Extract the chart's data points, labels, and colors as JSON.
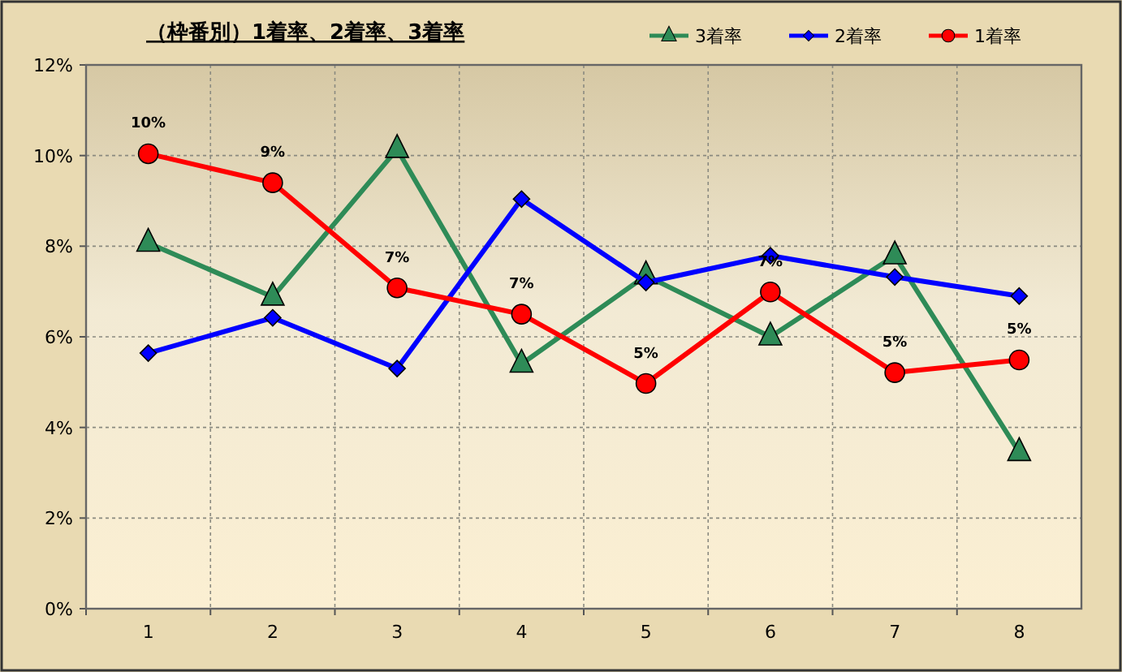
{
  "chart_data": {
    "type": "line",
    "title": "（枠番別）1着率、2着率、3着率",
    "categories": [
      "1",
      "2",
      "3",
      "4",
      "5",
      "6",
      "7",
      "8"
    ],
    "series": [
      {
        "name": "3着率",
        "color": "#2e8b57",
        "marker": "triangle",
        "values": [
          8.07,
          6.88,
          10.14,
          5.4,
          7.35,
          6.0,
          7.79,
          3.45
        ]
      },
      {
        "name": "2着率",
        "color": "#0000ff",
        "marker": "diamond",
        "values": [
          5.64,
          6.42,
          5.3,
          9.04,
          7.2,
          7.79,
          7.32,
          6.9
        ]
      },
      {
        "name": "1着率",
        "color": "#ff0000",
        "marker": "circle",
        "values": [
          10.04,
          9.4,
          7.08,
          6.5,
          4.97,
          6.99,
          5.21,
          5.49
        ],
        "value_labels": [
          "10%",
          "9%",
          "7%",
          "7%",
          "5%",
          "7%",
          "5%",
          "5%"
        ]
      }
    ],
    "ylim": [
      0,
      12
    ],
    "yticks": [
      {
        "value": 0,
        "label": "0%"
      },
      {
        "value": 2,
        "label": "2%"
      },
      {
        "value": 4,
        "label": "4%"
      },
      {
        "value": 6,
        "label": "6%"
      },
      {
        "value": 8,
        "label": "8%"
      },
      {
        "value": 10,
        "label": "10%"
      },
      {
        "value": 12,
        "label": "12%"
      }
    ],
    "grid": true,
    "legend": "top right",
    "line_style": "solid"
  }
}
